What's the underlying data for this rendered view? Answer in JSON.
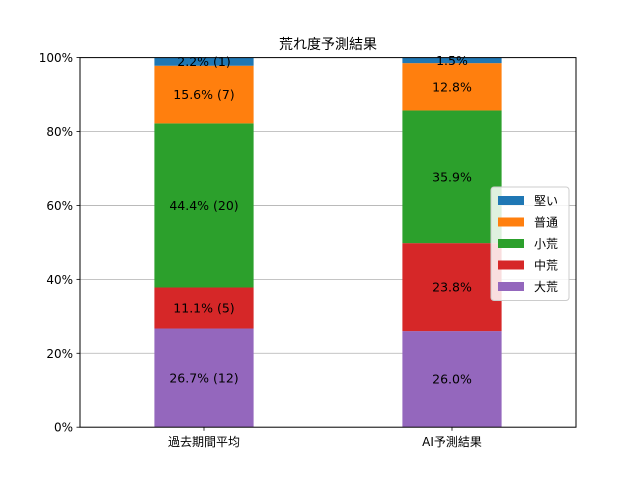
{
  "chart_data": {
    "type": "bar",
    "stacked": true,
    "title": "荒れ度予測結果",
    "xlabel": "",
    "ylabel": "",
    "categories": [
      "過去期間平均",
      "AI予測結果"
    ],
    "ylim": [
      0,
      100
    ],
    "yticks": [
      {
        "value": 0,
        "label": "0%"
      },
      {
        "value": 20,
        "label": "20%"
      },
      {
        "value": 40,
        "label": "40%"
      },
      {
        "value": 60,
        "label": "60%"
      },
      {
        "value": 80,
        "label": "80%"
      },
      {
        "value": 100,
        "label": "100%"
      }
    ],
    "grid": "y",
    "legend_position": "right",
    "series": [
      {
        "name": "大荒",
        "color": "#9467bd",
        "values": [
          26.7,
          26.0
        ],
        "labels": [
          "26.7% (12)",
          "26.0%"
        ]
      },
      {
        "name": "中荒",
        "color": "#d62728",
        "values": [
          11.1,
          23.8
        ],
        "labels": [
          "11.1% (5)",
          "23.8%"
        ]
      },
      {
        "name": "小荒",
        "color": "#2ca02c",
        "values": [
          44.4,
          35.9
        ],
        "labels": [
          "44.4% (20)",
          "35.9%"
        ]
      },
      {
        "name": "普通",
        "color": "#ff7f0e",
        "values": [
          15.6,
          12.8
        ],
        "labels": [
          "15.6% (7)",
          "12.8%"
        ]
      },
      {
        "name": "堅い",
        "color": "#1f77b4",
        "values": [
          2.2,
          1.5
        ],
        "labels": [
          "2.2% (1)",
          "1.5%"
        ]
      }
    ],
    "legend_order": [
      "堅い",
      "普通",
      "小荒",
      "中荒",
      "大荒"
    ]
  }
}
